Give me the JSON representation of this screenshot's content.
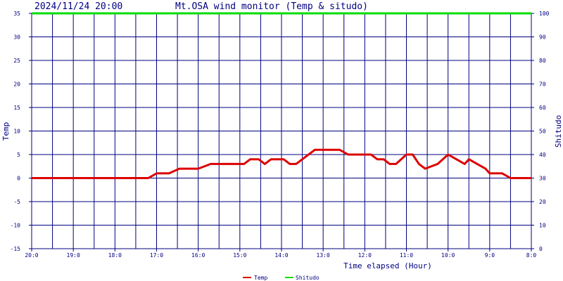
{
  "header": {
    "timestamp": "2024/11/24 20:00",
    "title": "Mt.OSA wind monitor (Temp & situdo)"
  },
  "chart_data": {
    "type": "line",
    "title": "Mt.OSA wind monitor (Temp & situdo)",
    "xlabel": "Time elapsed (Hour)",
    "ylabel_left": "Temp",
    "ylabel_right": "Shitudo",
    "ylim_left": [
      -15,
      35
    ],
    "ylim_right": [
      0,
      100
    ],
    "y_left_ticks": [
      "35",
      "30",
      "25",
      "20",
      "15",
      "10",
      "5",
      "0",
      "-5",
      "-10",
      "-15"
    ],
    "y_right_ticks": [
      "100",
      "90",
      "80",
      "70",
      "60",
      "50",
      "40",
      "30",
      "20",
      "10",
      "0"
    ],
    "x_tick_labels": [
      "20:0",
      "19:0",
      "18:0",
      "17:0",
      "16:0",
      "15:0",
      "14:0",
      "13:0",
      "12:0",
      "11:0",
      "10:0",
      "9:0",
      "8:0"
    ],
    "x_hours_elapsed_ticks": [
      0,
      1,
      2,
      3,
      4,
      5,
      6,
      7,
      8,
      9,
      10,
      11,
      12
    ],
    "grid": true,
    "legend_position": "bottom-center",
    "colors": {
      "temp": "#dd0000",
      "shitudo": "#00dd00",
      "grid": "#000080",
      "text": "#000080"
    },
    "series": [
      {
        "name": "Temp",
        "axis": "left",
        "x": [
          0,
          0.5,
          1,
          1.5,
          2,
          2.5,
          2.65,
          2.8,
          3.0,
          3.15,
          3.3,
          3.55,
          3.8,
          4.0,
          4.3,
          4.7,
          5.0,
          5.1,
          5.25,
          5.45,
          5.6,
          5.75,
          5.95,
          6.05,
          6.2,
          6.35,
          6.5,
          6.8,
          7.0,
          7.15,
          7.4,
          7.6,
          8.0,
          8.15,
          8.3,
          8.45,
          8.6,
          8.75,
          9.0,
          9.15,
          9.3,
          9.45,
          9.75,
          10.0,
          10.2,
          10.4,
          10.5,
          10.7,
          10.9,
          11.0,
          11.1,
          11.3,
          11.5,
          11.75,
          12.0
        ],
        "values": [
          0,
          0,
          0,
          0,
          0,
          0,
          0,
          0,
          1,
          1,
          1,
          2,
          2,
          2,
          3,
          3,
          3,
          3,
          4,
          4,
          3,
          4,
          4,
          4,
          3,
          3,
          4,
          6,
          6,
          6,
          6,
          5,
          5,
          5,
          4,
          4,
          3,
          3,
          5,
          5,
          3,
          2,
          3,
          5,
          4,
          3,
          4,
          3,
          2,
          1,
          1,
          1,
          0,
          0,
          0
        ]
      },
      {
        "name": "Shitudo",
        "axis": "right",
        "x": [
          0,
          12
        ],
        "values": [
          100,
          100
        ]
      }
    ]
  }
}
